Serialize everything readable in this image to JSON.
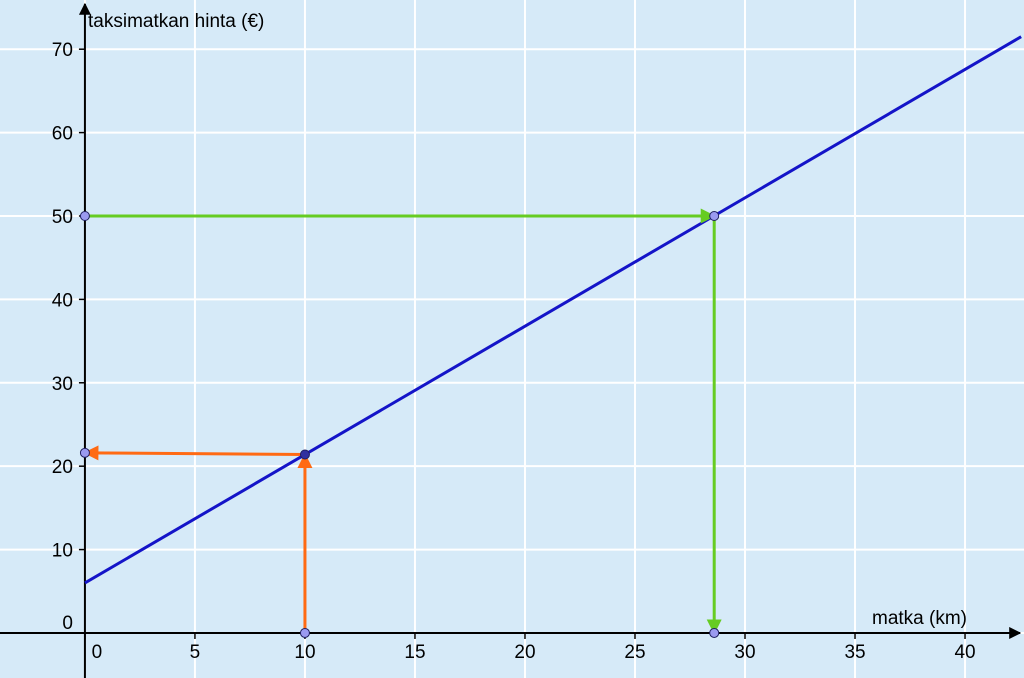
{
  "chart_data": {
    "type": "line",
    "x_label": "matka (km)",
    "y_label": "taksimatkan hinta (€)",
    "xlim": [
      -3.86,
      42.68
    ],
    "ylim": [
      -5.4,
      75.9
    ],
    "xticks": [
      0,
      5,
      10,
      15,
      20,
      25,
      30,
      35,
      40
    ],
    "yticks": [
      0,
      10,
      20,
      30,
      40,
      50,
      60,
      70
    ],
    "grid": true,
    "background": "#d6eaf8",
    "series": [
      {
        "color": "#1414c8",
        "x": [
          0,
          42.55
        ],
        "values": [
          6,
          71.5
        ]
      }
    ],
    "guides": [
      {
        "color": "#ff6a13",
        "x": [
          10,
          10,
          0
        ],
        "values": [
          0,
          21.4,
          21.6
        ]
      },
      {
        "color": "#66cc22",
        "x": [
          0,
          28.6,
          28.6
        ],
        "values": [
          50,
          50,
          0
        ]
      }
    ]
  }
}
